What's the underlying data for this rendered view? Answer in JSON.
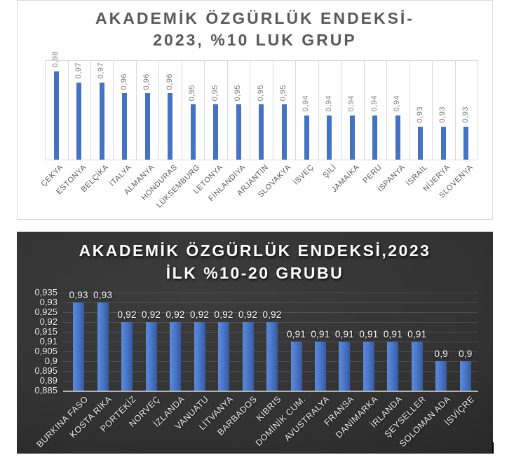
{
  "colors": {
    "bar_blue": "#4472C4",
    "bar_dark_gradient_start": "#5D89DA",
    "bar_dark_gradient_end": "#38599F",
    "light_chart_text": "#595959",
    "light_gridline": "#D9D9D9",
    "dark_chart_background": "#333333",
    "dark_chart_text": "#FFFFFF"
  },
  "chart_data": [
    {
      "type": "bar",
      "theme": "light",
      "title_lines": [
        "AKADEMİK ÖZGÜRLÜK ENDEKSİ-",
        "2023, %10 LUK GRUP"
      ],
      "categories": [
        "ÇEKYA",
        "ESTONYA",
        "BELÇİKA",
        "İTALYA",
        "ALMANYA",
        "HONDURAS",
        "LÜKSEMBURG",
        "LETONYA",
        "FİNLANDİYA",
        "ARJANTİN",
        "SLOVAKYA",
        "İSVEÇ",
        "ŞİLİ",
        "JAMAİKA",
        "PERU",
        "İSPANYA",
        "İSRAİL",
        "NİJERYA",
        "SLOVENYA"
      ],
      "values": [
        0.98,
        0.97,
        0.97,
        0.96,
        0.96,
        0.96,
        0.95,
        0.95,
        0.95,
        0.95,
        0.95,
        0.94,
        0.94,
        0.94,
        0.94,
        0.94,
        0.93,
        0.93,
        0.93
      ],
      "labels": [
        "0,98",
        "0,97",
        "0,97",
        "0,96",
        "0,96",
        "0,96",
        "0,95",
        "0,95",
        "0,95",
        "0,95",
        "0,95",
        "0,94",
        "0,94",
        "0,94",
        "0,94",
        "0,94",
        "0,93",
        "0,93",
        "0,93"
      ],
      "xlabel": "",
      "ylabel": "",
      "ylim": [
        0.9,
        0.99
      ],
      "grid": "vertical-category-lines",
      "legend": "none",
      "value_labels_rotated_vertical": true
    },
    {
      "type": "bar",
      "theme": "dark",
      "title_lines": [
        "AKADEMİK ÖZGÜRLÜK ENDEKSİ,2023",
        "İLK %10-20 GRUBU"
      ],
      "categories": [
        "BURKINA FASO",
        "KOSTA RİKA",
        "PORTEKİZ",
        "NORVEÇ",
        "İZLANDA",
        "VANUATU",
        "LİTVANYA",
        "BARBADOS",
        "KIBRIS",
        "DOMİNİK CUM.",
        "AVUSTRALYA",
        "FRANSA",
        "DANİMARKA",
        "İRLANDA",
        "ŞEYSELLER",
        "SOLOMAN ADA",
        "İSVİÇRE"
      ],
      "values": [
        0.93,
        0.93,
        0.92,
        0.92,
        0.92,
        0.92,
        0.92,
        0.92,
        0.92,
        0.91,
        0.91,
        0.91,
        0.91,
        0.91,
        0.91,
        0.9,
        0.9
      ],
      "labels": [
        "0,93",
        "0,93",
        "0,92",
        "0,92",
        "0,92",
        "0,92",
        "0,92",
        "0,92",
        "0,92",
        "0,91",
        "0,91",
        "0,91",
        "0,91",
        "0,91",
        "0,91",
        "0,9",
        "0,9"
      ],
      "xlabel": "",
      "ylabel": "",
      "ylim": [
        0.885,
        0.935
      ],
      "ytick_step": 0.005,
      "yticks": [
        "0,935",
        "0,93",
        "0,925",
        "0,92",
        "0,915",
        "0,91",
        "0,905",
        "0,9",
        "0,895",
        "0,89",
        "0,885"
      ],
      "grid": "horizontal",
      "legend": "none",
      "value_labels_rotated_vertical": false
    }
  ]
}
